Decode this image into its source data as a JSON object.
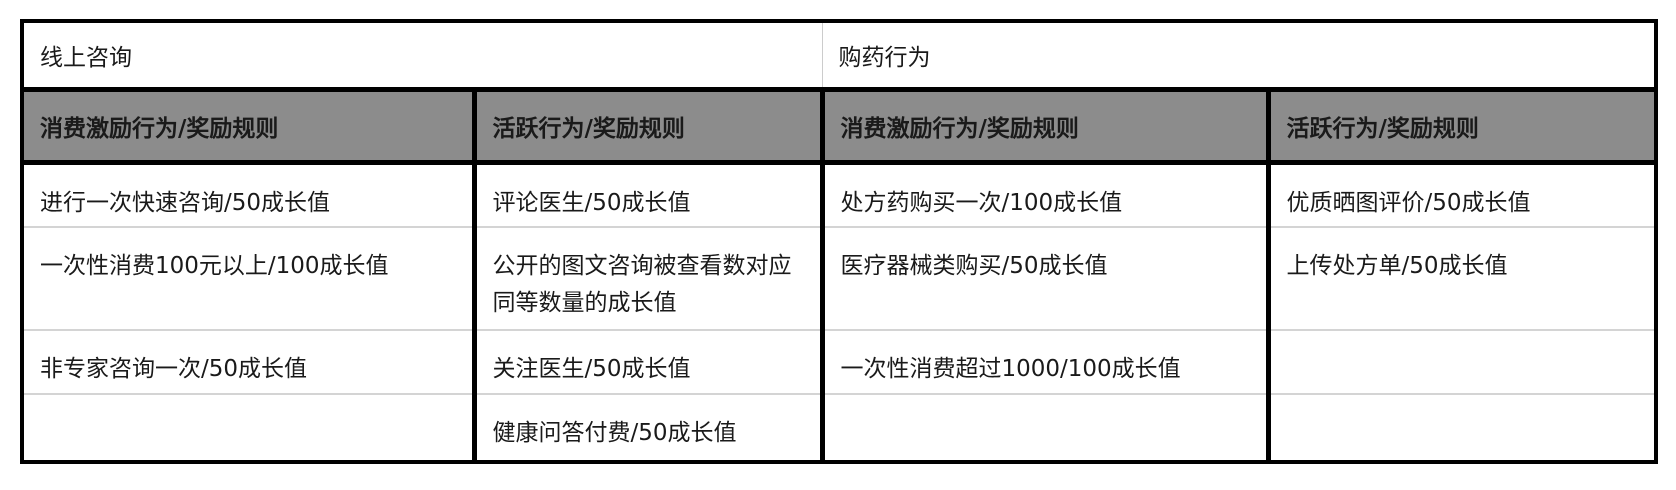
{
  "sections": [
    "线上咨询",
    "购药行为"
  ],
  "headers": [
    "消费激励行为/奖励规则",
    "活跃行为/奖励规则",
    "消费激励行为/奖励规则",
    "活跃行为/奖励规则"
  ],
  "rows": [
    [
      "进行一次快速咨询/50成长值",
      "评论医生/50成长值",
      "处方药购买一次/100成长值",
      "优质晒图评价/50成长值"
    ],
    [
      "一次性消费100元以上/100成长值",
      "公开的图文咨询被查看数对应同等数量的成长值",
      "医疗器械类购买/50成长值",
      "上传处方单/50成长值"
    ],
    [
      "非专家咨询一次/50成长值",
      "关注医生/50成长值",
      "一次性消费超过1000/100成长值",
      ""
    ],
    [
      "",
      "健康问答付费/50成长值",
      "",
      ""
    ]
  ],
  "colors": {
    "header_bg": "#8c8c8c",
    "border": "#000000",
    "row_divider": "#d4d4d4"
  }
}
